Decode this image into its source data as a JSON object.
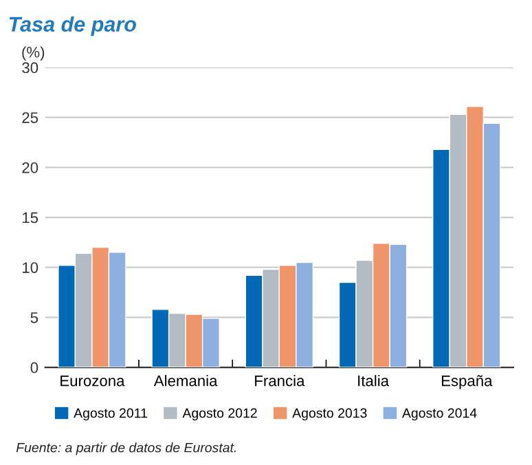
{
  "chart_data": {
    "type": "bar",
    "title": "Tasa de paro",
    "ylabel": "(%)",
    "categories": [
      "Eurozona",
      "Alemania",
      "Francia",
      "Italia",
      "España"
    ],
    "series": [
      {
        "name": "Agosto 2011",
        "color": "#0068b4",
        "values": [
          10.2,
          5.8,
          9.2,
          8.5,
          21.8
        ]
      },
      {
        "name": "Agosto 2012",
        "color": "#b2bcc2",
        "values": [
          11.4,
          5.4,
          9.8,
          10.7,
          25.3
        ]
      },
      {
        "name": "Agosto 2013",
        "color": "#f0956a",
        "values": [
          12.0,
          5.3,
          10.2,
          12.4,
          26.1
        ]
      },
      {
        "name": "Agosto 2014",
        "color": "#8db0e0",
        "values": [
          11.5,
          4.9,
          10.5,
          12.3,
          24.4
        ]
      }
    ],
    "ylim": [
      0,
      30
    ],
    "yticks": [
      0,
      5,
      10,
      15,
      20,
      25,
      30
    ],
    "grid": "y",
    "legend": "bottom",
    "annotations": [
      "Fuente: a partir de datos de Eurostat."
    ]
  }
}
